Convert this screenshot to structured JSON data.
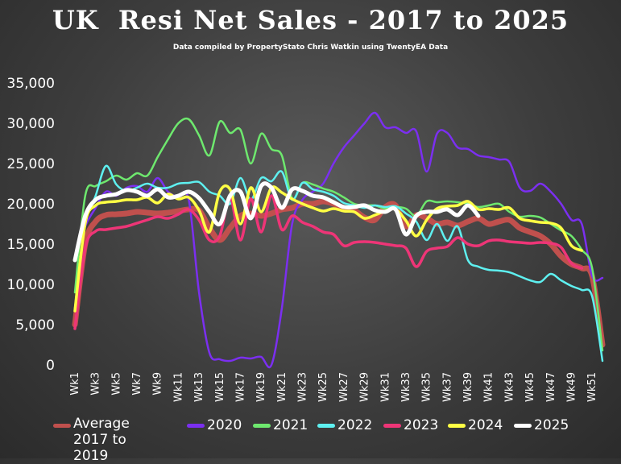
{
  "title": "UK  Resi Net Sales - 2017 to 2025",
  "subtitle": "Data compiled by PropertyStato Chris Watkin using TwentyEA Data",
  "chart_data": {
    "type": "line",
    "title": "UK  Resi Net Sales - 2017 to 2025",
    "subtitle": "Data compiled by PropertyStato Chris Watkin using TwentyEA Data",
    "xlabel": "",
    "ylabel": "",
    "ylim": [
      0,
      35000
    ],
    "yticks": [
      "0",
      "5,000",
      "10,000",
      "15,000",
      "20,000",
      "25,000",
      "30,000",
      "35,000"
    ],
    "xtick_labels": [
      "Wk1",
      "Wk3",
      "Wk5",
      "Wk7",
      "Wk9",
      "Wk11",
      "Wk13",
      "Wk15",
      "Wk17",
      "Wk19",
      "Wk21",
      "Wk23",
      "Wk25",
      "Wk27",
      "Wk29",
      "Wk31",
      "Wk33",
      "Wk35",
      "Wk37",
      "Wk39",
      "Wk41",
      "Wk43",
      "Wk45",
      "Wk47",
      "Wk49",
      "Wk51"
    ],
    "legend_position": "bottom",
    "grid": false,
    "series": [
      {
        "name": "Average 2017 to 2019",
        "color": "#c0504d",
        "width": 7,
        "x": [
          1,
          2,
          3,
          4,
          5,
          6,
          7,
          8,
          9,
          10,
          11,
          12,
          13,
          14,
          15,
          16,
          17,
          18,
          19,
          20,
          21,
          22,
          23,
          24,
          25,
          26,
          27,
          28,
          29,
          30,
          31,
          32,
          33,
          34,
          35,
          36,
          37,
          38,
          39,
          40,
          41,
          42,
          43,
          44,
          45,
          46,
          47,
          48,
          49,
          50,
          51,
          52
        ],
        "values": [
          5000,
          15000,
          17800,
          18600,
          18700,
          18800,
          19000,
          18900,
          18800,
          18900,
          19100,
          19300,
          19200,
          17000,
          15500,
          17000,
          18500,
          18800,
          18500,
          18800,
          19300,
          19500,
          20000,
          20000,
          20300,
          20000,
          19500,
          19200,
          18300,
          18000,
          19600,
          19800,
          17200,
          18600,
          18200,
          17500,
          17700,
          17300,
          17800,
          18200,
          17500,
          17800,
          18000,
          17000,
          16500,
          16000,
          15000,
          13500,
          12500,
          12000,
          11000,
          2500
        ]
      },
      {
        "name": "2020",
        "color": "#7b2ff0",
        "width": 2.5,
        "x": [
          1,
          2,
          3,
          4,
          5,
          6,
          7,
          8,
          9,
          10,
          11,
          12,
          13,
          14,
          15,
          16,
          17,
          18,
          19,
          20,
          21,
          22,
          23,
          24,
          25,
          26,
          27,
          28,
          29,
          30,
          31,
          32,
          33,
          34,
          35,
          36,
          37,
          38,
          39,
          40,
          41,
          42,
          43,
          44,
          45,
          46,
          47,
          48,
          49,
          50,
          51,
          52
        ],
        "values": [
          13000,
          17200,
          19500,
          21500,
          21000,
          22000,
          22200,
          21500,
          23200,
          21500,
          20800,
          20500,
          9000,
          1500,
          700,
          500,
          900,
          800,
          1000,
          0,
          7000,
          17500,
          20500,
          21500,
          22500,
          25000,
          27000,
          28500,
          30000,
          31300,
          29500,
          29500,
          28800,
          29000,
          24000,
          28700,
          28800,
          27000,
          26800,
          26000,
          25800,
          25500,
          25200,
          22000,
          21600,
          22500,
          21500,
          20000,
          18000,
          17500,
          11000,
          10800
        ]
      },
      {
        "name": "2021",
        "color": "#6ee86e",
        "width": 2.5,
        "x": [
          1,
          2,
          3,
          4,
          5,
          6,
          7,
          8,
          9,
          10,
          11,
          12,
          13,
          14,
          15,
          16,
          17,
          18,
          19,
          20,
          21,
          22,
          23,
          24,
          25,
          26,
          27,
          28,
          29,
          30,
          31,
          32,
          33,
          34,
          35,
          36,
          37,
          38,
          39,
          40,
          41,
          42,
          43,
          44,
          45,
          46,
          47,
          48,
          49,
          50,
          51,
          52
        ],
        "values": [
          9000,
          21000,
          22200,
          22800,
          23500,
          23000,
          23800,
          23500,
          25800,
          28000,
          30000,
          30500,
          28500,
          26000,
          30200,
          28800,
          29200,
          25000,
          28700,
          26800,
          26000,
          20700,
          22600,
          22400,
          21900,
          21500,
          20800,
          20000,
          19800,
          19800,
          19400,
          19600,
          19400,
          18500,
          20300,
          20200,
          20300,
          20200,
          20000,
          19600,
          19800,
          20000,
          19000,
          18400,
          18500,
          18300,
          17500,
          16700,
          16000,
          14300,
          12000,
          1800
        ]
      },
      {
        "name": "2022",
        "color": "#5ef0f0",
        "width": 2.5,
        "x": [
          1,
          2,
          3,
          4,
          5,
          6,
          7,
          8,
          9,
          10,
          11,
          12,
          13,
          14,
          15,
          16,
          17,
          18,
          19,
          20,
          21,
          22,
          23,
          24,
          25,
          26,
          27,
          28,
          29,
          30,
          31,
          32,
          33,
          34,
          35,
          36,
          37,
          38,
          39,
          40,
          41,
          42,
          43,
          44,
          45,
          46,
          47,
          48,
          49,
          50,
          51,
          52
        ],
        "values": [
          7000,
          17500,
          21000,
          24700,
          22400,
          21600,
          22000,
          22500,
          22000,
          22000,
          22500,
          22600,
          22700,
          21500,
          21000,
          20000,
          23200,
          20500,
          23200,
          22800,
          24000,
          20500,
          22600,
          21800,
          21500,
          21000,
          20100,
          19800,
          19500,
          19800,
          19600,
          19700,
          18800,
          17800,
          15500,
          17500,
          15400,
          17200,
          13000,
          12200,
          11800,
          11700,
          11500,
          11000,
          10500,
          10300,
          11300,
          10500,
          9800,
          9300,
          8500,
          500
        ]
      },
      {
        "name": "2023",
        "color": "#ee3577",
        "width": 3.5,
        "x": [
          1,
          2,
          3,
          4,
          5,
          6,
          7,
          8,
          9,
          10,
          11,
          12,
          13,
          14,
          15,
          16,
          17,
          18,
          19,
          20,
          21,
          22,
          23,
          24,
          25,
          26,
          27,
          28,
          29,
          30,
          31,
          32,
          33,
          34,
          35,
          36,
          37,
          38,
          39,
          40,
          41,
          42,
          43,
          44,
          45,
          46,
          47,
          48,
          49,
          50
        ],
        "values": [
          4500,
          14500,
          16600,
          16800,
          17000,
          17200,
          17600,
          18000,
          18400,
          18200,
          18700,
          19300,
          18000,
          15500,
          16000,
          20800,
          15500,
          20600,
          16500,
          21000,
          16800,
          18500,
          17700,
          17200,
          16500,
          16200,
          14800,
          15200,
          15300,
          15200,
          15000,
          14800,
          14500,
          12200,
          14100,
          14500,
          14700,
          15800,
          15000,
          14800,
          15400,
          15500,
          15300,
          15200,
          15100,
          15200,
          15100,
          14600,
          12600,
          12000
        ]
      },
      {
        "name": "2024",
        "color": "#ffff44",
        "width": 3.5,
        "x": [
          1,
          2,
          3,
          4,
          5,
          6,
          7,
          8,
          9,
          10,
          11,
          12,
          13,
          14,
          15,
          16,
          17,
          18,
          19,
          20,
          21,
          22,
          23,
          24,
          25,
          26,
          27,
          28,
          29,
          30,
          31,
          32,
          33,
          34,
          35,
          36,
          37,
          38,
          39,
          40,
          41,
          42,
          43,
          44,
          45,
          46,
          47,
          48,
          49,
          50
        ],
        "values": [
          6700,
          17600,
          19800,
          20200,
          20300,
          20500,
          20500,
          20800,
          20100,
          21200,
          20600,
          20800,
          19200,
          16500,
          21500,
          21800,
          17500,
          22000,
          19000,
          22000,
          21400,
          20600,
          20000,
          19500,
          19100,
          19400,
          19100,
          19000,
          18200,
          18600,
          19100,
          19300,
          17900,
          16000,
          18000,
          19400,
          19700,
          19800,
          20300,
          19300,
          19400,
          19300,
          19500,
          18200,
          17900,
          17700,
          17600,
          17000,
          14800,
          14200
        ]
      },
      {
        "name": "2025",
        "color": "#ffffff",
        "width": 5,
        "x": [
          1,
          2,
          3,
          4,
          5,
          6,
          7,
          8,
          9,
          10,
          11,
          12,
          13,
          14,
          15,
          16,
          17,
          18,
          19,
          20,
          21,
          22,
          23,
          24,
          25,
          26,
          27,
          28,
          29,
          30,
          31,
          32,
          33,
          34,
          35,
          36,
          37,
          38,
          39,
          40
        ],
        "values": [
          13000,
          18500,
          20500,
          21000,
          21200,
          21700,
          21500,
          21000,
          21800,
          20800,
          21000,
          21500,
          20700,
          19000,
          17500,
          21000,
          21500,
          18200,
          22200,
          22000,
          19500,
          21800,
          21600,
          21000,
          20800,
          20200,
          19600,
          19600,
          19800,
          19200,
          19000,
          19300,
          16200,
          18500,
          19000,
          19000,
          19300,
          18600,
          19800,
          18500
        ]
      }
    ]
  },
  "legend": [
    {
      "label": "Average 2017 to 2019",
      "color": "#c0504d"
    },
    {
      "label": "2020",
      "color": "#7b2ff0"
    },
    {
      "label": "2021",
      "color": "#6ee86e"
    },
    {
      "label": "2022",
      "color": "#5ef0f0"
    },
    {
      "label": "2023",
      "color": "#ee3577"
    },
    {
      "label": "2024",
      "color": "#ffff44"
    },
    {
      "label": "2025",
      "color": "#ffffff"
    }
  ]
}
